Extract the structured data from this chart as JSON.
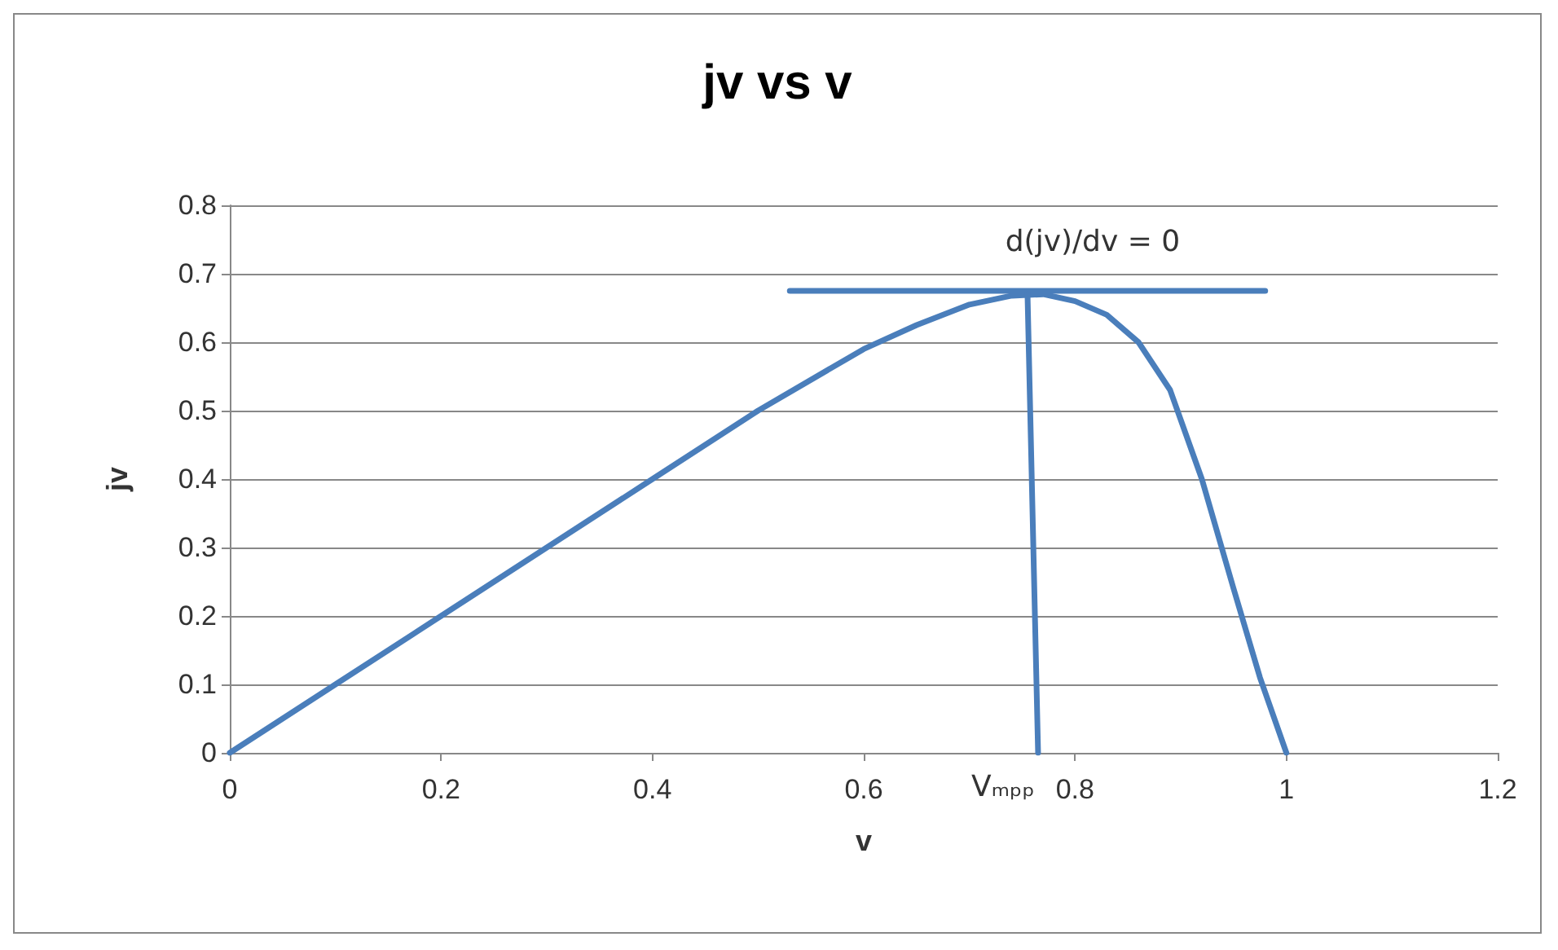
{
  "chart_data": {
    "type": "line",
    "title": "jv vs v",
    "xlabel": "v",
    "ylabel": "jv",
    "xlim": [
      0,
      1.2
    ],
    "xticks": [
      0,
      0.2,
      0.4,
      0.6,
      0.8,
      1,
      1.2
    ],
    "ylim": [
      0,
      0.8
    ],
    "yticks": [
      0,
      0.1,
      0.2,
      0.3,
      0.4,
      0.5,
      0.6,
      0.7,
      0.8
    ],
    "grid": "y",
    "marker": "none",
    "line_style": "solid",
    "series": [
      {
        "color": "#4a7ebb",
        "x": [
          0,
          0.1,
          0.2,
          0.3,
          0.4,
          0.5,
          0.6,
          0.65,
          0.7,
          0.74,
          0.77,
          0.8,
          0.83,
          0.86,
          0.89,
          0.92,
          0.95,
          0.975,
          1.0
        ],
        "values": [
          0,
          0.1,
          0.2,
          0.3,
          0.4,
          0.5,
          0.59,
          0.625,
          0.655,
          0.668,
          0.67,
          0.66,
          0.64,
          0.6,
          0.53,
          0.4,
          0.24,
          0.11,
          0
        ]
      },
      {
        "color": "#4a7ebb",
        "x": [
          0.53,
          0.98
        ],
        "values": [
          0.675,
          0.675
        ]
      },
      {
        "color": "#4a7ebb",
        "x": [
          0.755,
          0.765
        ],
        "values": [
          0.67,
          0
        ]
      }
    ],
    "annotations": [
      "d(jv)/dv = 0",
      "Vₘₚₚ"
    ]
  }
}
